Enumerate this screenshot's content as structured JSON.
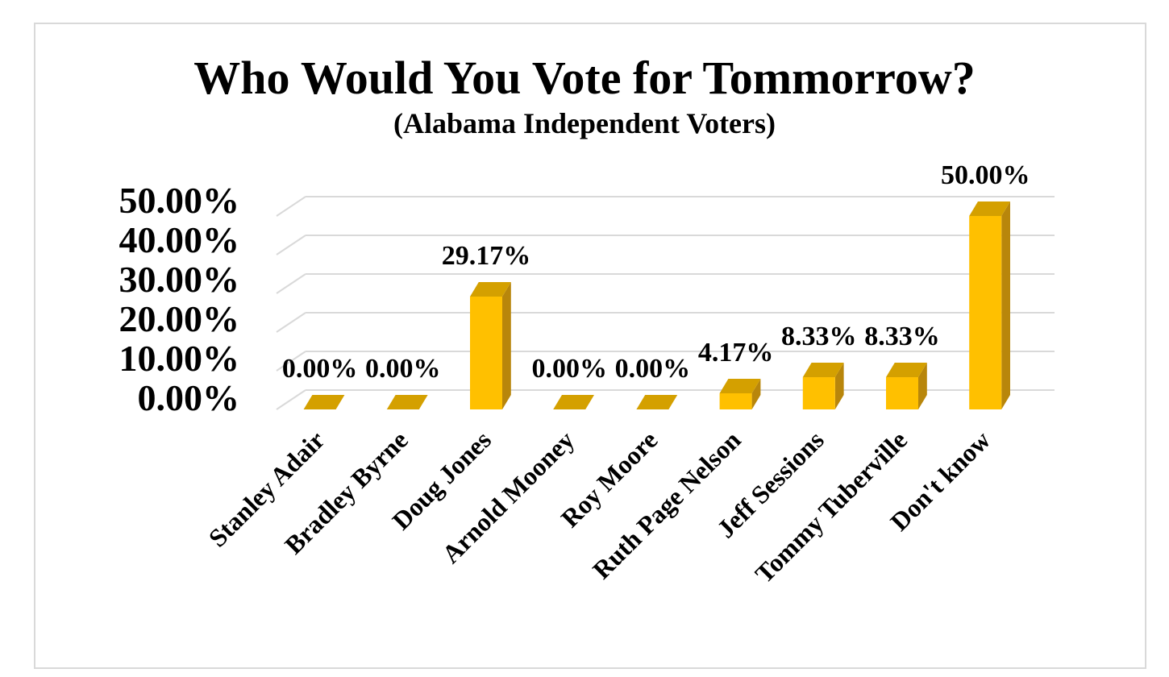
{
  "chart_data": {
    "type": "bar",
    "title": "Who Would You Vote for Tommorrow?",
    "subtitle": "(Alabama Independent Voters)",
    "xlabel": "",
    "ylabel": "",
    "categories": [
      "Stanley Adair",
      "Bradley Byrne",
      "Doug Jones",
      "Arnold Mooney",
      "Roy Moore",
      "Ruth Page Nelson",
      "Jeff Sessions",
      "Tommy Tuberville",
      "Don't know"
    ],
    "values": [
      0.0,
      0.0,
      29.17,
      0.0,
      0.0,
      4.17,
      8.33,
      8.33,
      50.0
    ],
    "data_labels": [
      "0.00%",
      "0.00%",
      "29.17%",
      "0.00%",
      "0.00%",
      "4.17%",
      "8.33%",
      "8.33%",
      "50.00%"
    ],
    "y_ticks": [
      "0.00%",
      "10.00%",
      "20.00%",
      "30.00%",
      "40.00%",
      "50.00%"
    ],
    "ylim": [
      0,
      50
    ],
    "grid": true,
    "legend": "none",
    "bar_color": "#ffc000",
    "bar_side_color": "#b8860b",
    "bar_top_color": "#d4a000",
    "grid_color": "#d9d9d9"
  }
}
